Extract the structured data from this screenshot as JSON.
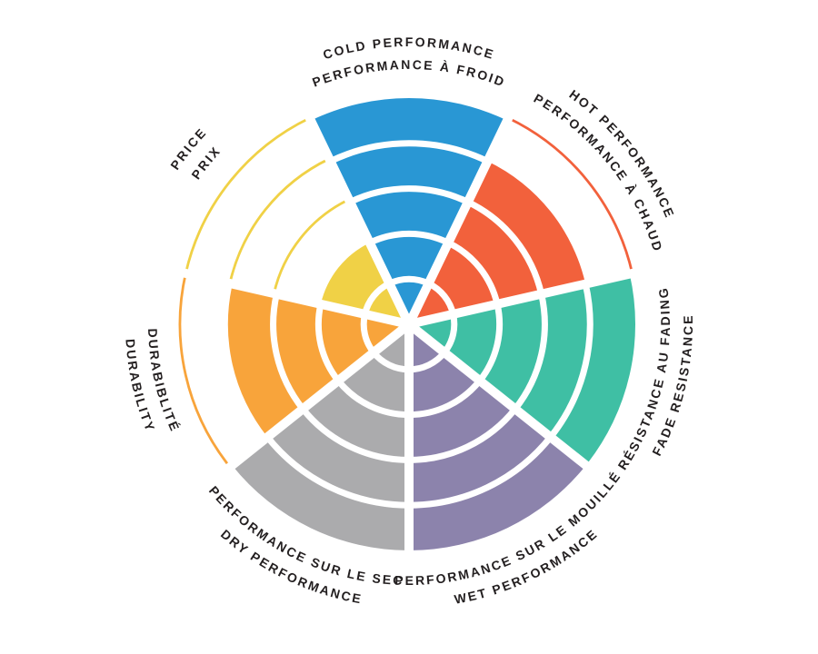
{
  "page": {
    "background": "#FFFFFF"
  },
  "chart_data": {
    "type": "polar-sector-rating",
    "description": "Seven-sector brake-pad rating wheel; each sector is a pie wedge filled to a value out of 5 concentric rings, clockwise from top; unfilled ring boundaries drawn as thin arcs in the sector color; bilingual labels around the rim",
    "max_rings": 5,
    "start": "top",
    "direction": "clockwise",
    "text_color": "#231F20",
    "ring_divider_color": "#FFFFFF",
    "sectors": [
      {
        "id": "cold-performance",
        "lines": [
          "COLD PERFORMANCE",
          "PERFORMANCE À FROID"
        ],
        "value": 5,
        "color": "#2997D4",
        "label_flipped": false
      },
      {
        "id": "hot-performance",
        "lines": [
          "HOT PERFORMANCE",
          "PERFORMANCE À CHAUD"
        ],
        "value": 4,
        "color": "#F2613C",
        "label_flipped": false
      },
      {
        "id": "fade-resistance",
        "lines": [
          "RÉSISTANCE AU FADING",
          "FADE RESISTANCE"
        ],
        "value": 5,
        "color": "#3FBFA4",
        "label_flipped": true
      },
      {
        "id": "wet-performance",
        "lines": [
          "PERFORMANCE SUR LE MOUILLÉ",
          "WET PERFORMANCE"
        ],
        "value": 5,
        "color": "#8C83AC",
        "label_flipped": true
      },
      {
        "id": "dry-performance",
        "lines": [
          "PERFORMANCE SUR LE SEC",
          "DRY PERFORMANCE"
        ],
        "value": 5,
        "color": "#ABABAD",
        "label_flipped": true
      },
      {
        "id": "durability",
        "lines": [
          "DURABIBLITÉ",
          "DURABILITY"
        ],
        "value": 4,
        "color": "#F8A43B",
        "label_flipped": true
      },
      {
        "id": "price",
        "lines": [
          "PRICE",
          "PRIX"
        ],
        "value": 2,
        "color": "#F0D146",
        "label_flipped": false
      }
    ]
  }
}
